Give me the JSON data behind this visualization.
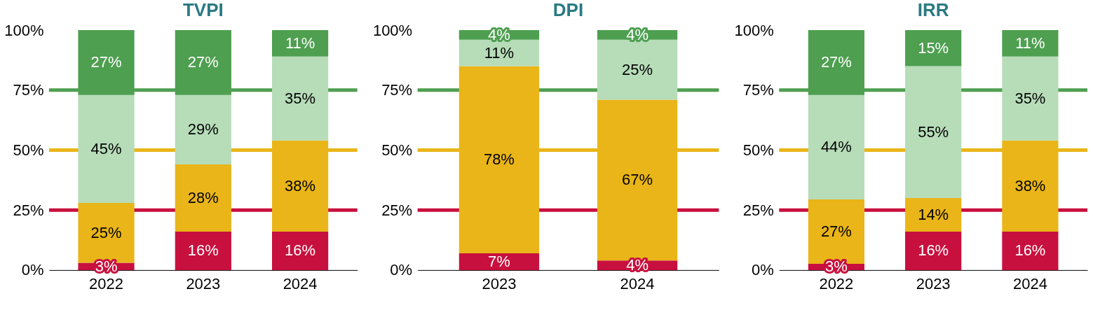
{
  "chart_data": [
    {
      "type": "bar",
      "stacked": true,
      "title": "TVPI",
      "categories": [
        "2022",
        "2023",
        "2024"
      ],
      "series": [
        {
          "color": "#c8103e",
          "values": [
            3,
            16,
            16
          ],
          "value_labels": [
            "3%",
            "16%",
            "16%"
          ]
        },
        {
          "color": "#e9b518",
          "values": [
            25,
            28,
            38
          ],
          "value_labels": [
            "25%",
            "28%",
            "38%"
          ]
        },
        {
          "color": "#b6dcb8",
          "values": [
            45,
            29,
            35
          ],
          "value_labels": [
            "45%",
            "29%",
            "35%"
          ]
        },
        {
          "color": "#4e9f50",
          "values": [
            27,
            27,
            11
          ],
          "value_labels": [
            "27%",
            "27%",
            "11%"
          ]
        }
      ],
      "ylim": [
        0,
        100
      ],
      "yticks": [
        {
          "value": 0,
          "label": "0%"
        },
        {
          "value": 25,
          "label": "25%"
        },
        {
          "value": 50,
          "label": "50%"
        },
        {
          "value": 75,
          "label": "75%"
        },
        {
          "value": 100,
          "label": "100%"
        }
      ],
      "grid": false,
      "ref_lines": [
        {
          "axis": "y",
          "value": 25,
          "color": "#c8103e"
        },
        {
          "axis": "y",
          "value": 50,
          "color": "#e9b518"
        },
        {
          "axis": "y",
          "value": 75,
          "color": "#4e9f50"
        }
      ]
    },
    {
      "type": "bar",
      "stacked": true,
      "title": "DPI",
      "categories": [
        "2023",
        "2024"
      ],
      "series": [
        {
          "color": "#c8103e",
          "values": [
            7,
            4
          ],
          "value_labels": [
            "7%",
            "4%"
          ]
        },
        {
          "color": "#e9b518",
          "values": [
            78,
            67
          ],
          "value_labels": [
            "78%",
            "67%"
          ]
        },
        {
          "color": "#b6dcb8",
          "values": [
            11,
            25
          ],
          "value_labels": [
            "11%",
            "25%"
          ]
        },
        {
          "color": "#4e9f50",
          "values": [
            4,
            4
          ],
          "value_labels": [
            "4%",
            "4%"
          ]
        }
      ],
      "ylim": [
        0,
        100
      ],
      "yticks": [
        {
          "value": 0,
          "label": "0%"
        },
        {
          "value": 25,
          "label": "25%"
        },
        {
          "value": 50,
          "label": "50%"
        },
        {
          "value": 75,
          "label": "75%"
        },
        {
          "value": 100,
          "label": "100%"
        }
      ],
      "grid": false,
      "ref_lines": [
        {
          "axis": "y",
          "value": 25,
          "color": "#c8103e"
        },
        {
          "axis": "y",
          "value": 50,
          "color": "#e9b518"
        },
        {
          "axis": "y",
          "value": 75,
          "color": "#4e9f50"
        }
      ]
    },
    {
      "type": "bar",
      "stacked": true,
      "title": "IRR",
      "categories": [
        "2022",
        "2023",
        "2024"
      ],
      "series": [
        {
          "color": "#c8103e",
          "values": [
            2.6,
            16,
            16
          ],
          "value_labels": [
            "3%",
            "16%",
            "16%"
          ]
        },
        {
          "color": "#e9b518",
          "values": [
            26.8,
            14,
            38
          ],
          "value_labels": [
            "27%",
            "14%",
            "38%"
          ]
        },
        {
          "color": "#b6dcb8",
          "values": [
            43.6,
            55,
            35
          ],
          "value_labels": [
            "44%",
            "55%",
            "35%"
          ]
        },
        {
          "color": "#4e9f50",
          "values": [
            27,
            15,
            11
          ],
          "value_labels": [
            "27%",
            "15%",
            "11%"
          ]
        }
      ],
      "ylim": [
        0,
        100
      ],
      "yticks": [
        {
          "value": 0,
          "label": "0%"
        },
        {
          "value": 25,
          "label": "25%"
        },
        {
          "value": 50,
          "label": "50%"
        },
        {
          "value": 75,
          "label": "75%"
        },
        {
          "value": 100,
          "label": "100%"
        }
      ],
      "grid": false,
      "ref_lines": [
        {
          "axis": "y",
          "value": 25,
          "color": "#c8103e"
        },
        {
          "axis": "y",
          "value": 50,
          "color": "#e9b518"
        },
        {
          "axis": "y",
          "value": 75,
          "color": "#4e9f50"
        }
      ]
    }
  ]
}
